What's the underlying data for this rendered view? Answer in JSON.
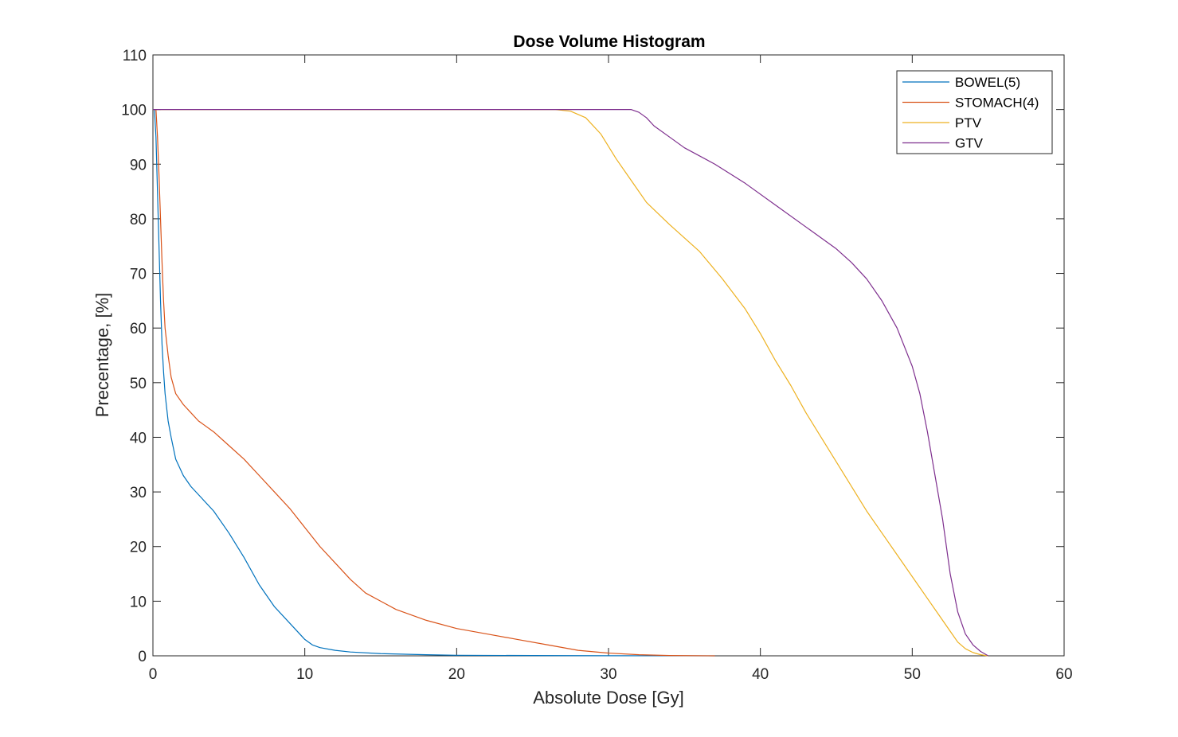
{
  "chart_data": {
    "type": "line",
    "title": "Dose Volume Histogram",
    "xlabel": "Absolute Dose [Gy]",
    "ylabel": "Precentage, [%]",
    "xlim": [
      0,
      60
    ],
    "ylim": [
      0,
      110
    ],
    "xticks": [
      0,
      10,
      20,
      30,
      40,
      50,
      60
    ],
    "yticks": [
      0,
      10,
      20,
      30,
      40,
      50,
      60,
      70,
      80,
      90,
      100,
      110
    ],
    "grid": false,
    "legend_position": "top-right",
    "series": [
      {
        "name": "BOWEL(5)",
        "color": "#0072BD",
        "x": [
          0,
          0.1,
          0.2,
          0.3,
          0.4,
          0.5,
          0.6,
          0.7,
          0.8,
          1.0,
          1.2,
          1.5,
          2.0,
          2.5,
          3.0,
          4.0,
          5.0,
          6.0,
          7.0,
          8.0,
          9.0,
          10.0,
          10.5,
          11.0,
          12.0,
          13.0,
          15.0,
          18.0,
          20.0,
          25.0,
          30.0,
          35.0,
          37.0
        ],
        "y": [
          100,
          100,
          95,
          85,
          75,
          65,
          57,
          52,
          48,
          43,
          40,
          36,
          33,
          31,
          29.5,
          26.5,
          22.5,
          18,
          13,
          9,
          6,
          3,
          2,
          1.5,
          1,
          0.7,
          0.4,
          0.2,
          0.1,
          0.05,
          0.02,
          0.01,
          0
        ]
      },
      {
        "name": "STOMACH(4)",
        "color": "#D95319",
        "x": [
          0,
          0.2,
          0.3,
          0.4,
          0.5,
          0.6,
          0.7,
          0.8,
          1.0,
          1.2,
          1.5,
          2.0,
          2.5,
          3.0,
          4.0,
          5.0,
          6.0,
          7.0,
          8.0,
          9.0,
          10.0,
          11.0,
          12.0,
          13.0,
          14.0,
          15.0,
          16.0,
          17.0,
          18.0,
          20.0,
          22.0,
          24.0,
          26.0,
          28.0,
          30.0,
          32.0,
          34.0,
          36.5,
          37.0
        ],
        "y": [
          100,
          100,
          95,
          88,
          80,
          72,
          65,
          60,
          55,
          51,
          48,
          46,
          44.5,
          43,
          41,
          38.5,
          36,
          33,
          30,
          27,
          23.5,
          20,
          17,
          14,
          11.5,
          10,
          8.5,
          7.5,
          6.5,
          5,
          4,
          3,
          2,
          1,
          0.5,
          0.2,
          0.05,
          0.01,
          0
        ]
      },
      {
        "name": "PTV",
        "color": "#EDB120",
        "x": [
          0,
          26.5,
          27.5,
          28.5,
          29.5,
          30.5,
          31.5,
          32.5,
          34.0,
          36.0,
          37.5,
          39.0,
          40.0,
          41.0,
          42.0,
          43.0,
          44.0,
          45.0,
          46.0,
          47.0,
          48.0,
          49.0,
          50.0,
          51.0,
          52.0,
          52.5,
          53.0,
          53.5,
          54.0,
          54.5,
          55.0
        ],
        "y": [
          100,
          100,
          99.7,
          98.5,
          95.5,
          91,
          87,
          83,
          79,
          74,
          69,
          63.5,
          59,
          54,
          49.5,
          44.5,
          40,
          35.5,
          31,
          26.5,
          22.5,
          18.5,
          14.5,
          10.5,
          6.5,
          4.5,
          2.5,
          1.3,
          0.6,
          0.2,
          0
        ]
      },
      {
        "name": "GTV",
        "color": "#7E2F8E",
        "x": [
          0,
          31.0,
          31.5,
          32.0,
          32.5,
          33.0,
          34.0,
          35.0,
          37.0,
          39.0,
          41.0,
          43.0,
          45.0,
          46.0,
          47.0,
          48.0,
          49.0,
          50.0,
          50.5,
          51.0,
          51.5,
          52.0,
          52.5,
          53.0,
          53.5,
          54.0,
          54.5,
          55.0
        ],
        "y": [
          100,
          100,
          100,
          99.5,
          98.5,
          97,
          95,
          93,
          90,
          86.5,
          82.5,
          78.5,
          74.5,
          72,
          69,
          65,
          60,
          53,
          48,
          41,
          33,
          25,
          15,
          8,
          4,
          2,
          0.8,
          0
        ]
      }
    ]
  }
}
